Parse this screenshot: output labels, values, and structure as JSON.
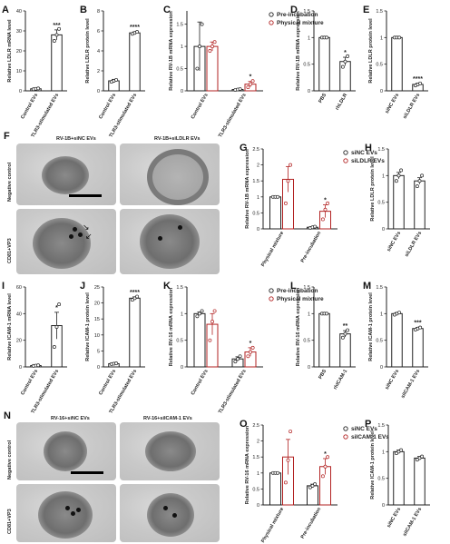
{
  "panel_letters": [
    "A",
    "B",
    "C",
    "D",
    "E",
    "F",
    "G",
    "H",
    "I",
    "J",
    "K",
    "L",
    "M",
    "N",
    "O",
    "P"
  ],
  "colors": {
    "black": "#222222",
    "red": "#b22222"
  },
  "em_F": {
    "col_labels": [
      "RV-1B+siNC EVs",
      "RV-1B+siLDLR EVs"
    ],
    "row_labels": [
      "Negative control",
      "CD81+VP3"
    ]
  },
  "em_N": {
    "col_labels": [
      "RV-16+siNC EVs",
      "RV-16+siICAM-1 EVs"
    ],
    "row_labels": [
      "Negative control",
      "CD81+VP3"
    ]
  },
  "chart_data": [
    {
      "panel": "A",
      "type": "bar",
      "ylabel": "Relative LDLR mRNA level",
      "categories": [
        "Control EVs",
        "TLR3-stimulated EVs"
      ],
      "ylim": [
        0,
        40
      ],
      "yticks": [
        0,
        10,
        20,
        30,
        40
      ],
      "values": [
        1,
        28
      ],
      "errors": [
        0.3,
        2.5
      ],
      "points": [
        [
          0.8,
          1.0,
          1.2
        ],
        [
          25,
          28,
          31
        ]
      ],
      "bar_colors": [
        "black",
        "black"
      ],
      "sig": [
        "",
        "***"
      ]
    },
    {
      "panel": "B",
      "type": "bar",
      "ylabel": "Relative LDLR protein level",
      "categories": [
        "Control EVs",
        "TLR3-stimulated EVs"
      ],
      "ylim": [
        0,
        8
      ],
      "yticks": [
        0,
        2,
        4,
        6,
        8
      ],
      "values": [
        1,
        5.8
      ],
      "errors": [
        0.15,
        0.1
      ],
      "points": [
        [
          0.9,
          1.0,
          1.1
        ],
        [
          5.7,
          5.8,
          5.9
        ]
      ],
      "bar_colors": [
        "black",
        "black"
      ],
      "sig": [
        "",
        "****"
      ]
    },
    {
      "panel": "C",
      "type": "bar",
      "ylabel": "Relative RV-1B mRNA expression",
      "categories": [
        "Control EVs",
        "TLR3-stimulated EVs"
      ],
      "ylim": [
        0,
        1.8
      ],
      "yticks": [
        0,
        0.5,
        1,
        1.5
      ],
      "legend": {
        "position": "top-right",
        "entries": [
          "Pre-incubation",
          "Physical mixture"
        ]
      },
      "series": [
        {
          "name": "Pre-incubation",
          "values": [
            1.0,
            0.03
          ],
          "errors": [
            0.55,
            0.01
          ],
          "points": [
            [
              0.5,
              1.0,
              1.5
            ],
            [
              0.02,
              0.03,
              0.04
            ]
          ],
          "color": "black"
        },
        {
          "name": "Physical mixture",
          "values": [
            1.0,
            0.15
          ],
          "errors": [
            0.1,
            0.06
          ],
          "points": [
            [
              0.9,
              1.0,
              1.1
            ],
            [
              0.08,
              0.15,
              0.22
            ]
          ],
          "color": "red"
        }
      ],
      "sig": [
        "",
        "*"
      ]
    },
    {
      "panel": "D",
      "type": "bar",
      "ylabel": "Relative RV-1B mRNA expression",
      "categories": [
        "PBS",
        "rhLDLR"
      ],
      "ylim": [
        0,
        1.5
      ],
      "yticks": [
        0,
        0.5,
        1,
        1.5
      ],
      "values": [
        1,
        0.55
      ],
      "errors": [
        0.02,
        0.08
      ],
      "points": [
        [
          1,
          1,
          1
        ],
        [
          0.45,
          0.55,
          0.65
        ]
      ],
      "bar_colors": [
        "black",
        "black"
      ],
      "sig": [
        "",
        "*"
      ]
    },
    {
      "panel": "E",
      "type": "bar",
      "ylabel": "Relative LDLR protein level",
      "categories": [
        "siNC EVs",
        "siLDLR EVs"
      ],
      "ylim": [
        0,
        1.5
      ],
      "yticks": [
        0,
        0.5,
        1,
        1.5
      ],
      "values": [
        1,
        0.12
      ],
      "errors": [
        0.02,
        0.02
      ],
      "points": [
        [
          1,
          1,
          1
        ],
        [
          0.1,
          0.12,
          0.14
        ]
      ],
      "bar_colors": [
        "black",
        "black"
      ],
      "sig": [
        "",
        "****"
      ]
    },
    {
      "panel": "G",
      "type": "bar",
      "ylabel": "Relative RV-1B mRNA expression",
      "categories": [
        "Physical mixture",
        "Pre-incubation"
      ],
      "ylim": [
        0,
        2.5
      ],
      "yticks": [
        0,
        0.5,
        1,
        1.5,
        2,
        2.5
      ],
      "legend": {
        "position": "top-right",
        "entries": [
          "siNC EVs",
          "siLDLR EVs"
        ]
      },
      "series": [
        {
          "name": "siNC EVs",
          "values": [
            1.0,
            0.05
          ],
          "errors": [
            0.0,
            0.02
          ],
          "points": [
            [
              1,
              1,
              1
            ],
            [
              0.03,
              0.05,
              0.07
            ]
          ],
          "color": "black"
        },
        {
          "name": "siLDLR EVs",
          "values": [
            1.55,
            0.55
          ],
          "errors": [
            0.4,
            0.2
          ],
          "points": [
            [
              0.8,
              1.5,
              2.0
            ],
            [
              0.3,
              0.6,
              0.8
            ]
          ],
          "color": "red"
        }
      ],
      "sig": [
        "",
        "*"
      ]
    },
    {
      "panel": "H",
      "type": "bar",
      "ylabel": "Relative LDLR protein level",
      "categories": [
        "siNC EVs",
        "siLDLR EVs"
      ],
      "ylim": [
        0,
        1.5
      ],
      "yticks": [
        0,
        0.5,
        1,
        1.5
      ],
      "values": [
        1,
        0.9
      ],
      "errors": [
        0.06,
        0.06
      ],
      "points": [
        [
          0.9,
          1.0,
          1.1
        ],
        [
          0.8,
          0.9,
          1.0
        ]
      ],
      "bar_colors": [
        "black",
        "black"
      ],
      "sig": [
        "",
        ""
      ]
    },
    {
      "panel": "I",
      "type": "bar",
      "ylabel": "Relative ICAM-1 mRNA level",
      "categories": [
        "Control EVs",
        "TLR3-stimulated EVs"
      ],
      "ylim": [
        0,
        60
      ],
      "yticks": [
        0,
        20,
        40,
        60
      ],
      "values": [
        1,
        31
      ],
      "errors": [
        0.3,
        10
      ],
      "points": [
        [
          0.8,
          1.0,
          1.2
        ],
        [
          15,
          30,
          47
        ]
      ],
      "bar_colors": [
        "black",
        "black"
      ],
      "sig": [
        "",
        "*"
      ]
    },
    {
      "panel": "J",
      "type": "bar",
      "ylabel": "Relative ICAM-1 protein level",
      "categories": [
        "Control EVs",
        "TLR3-stimulated EVs"
      ],
      "ylim": [
        0,
        25
      ],
      "yticks": [
        0,
        5,
        10,
        15,
        20,
        25
      ],
      "values": [
        1,
        21.5
      ],
      "errors": [
        0.15,
        0.4
      ],
      "points": [
        [
          0.9,
          1.0,
          1.1
        ],
        [
          21,
          21.5,
          22
        ]
      ],
      "bar_colors": [
        "black",
        "black"
      ],
      "sig": [
        "",
        "****"
      ]
    },
    {
      "panel": "K",
      "type": "bar",
      "ylabel": "Relative RV-16 mRNA expression",
      "categories": [
        "Control EVs",
        "TLR3-stimulated EVs"
      ],
      "ylim": [
        0,
        1.5
      ],
      "yticks": [
        0,
        0.5,
        1,
        1.5
      ],
      "legend": {
        "position": "top-right",
        "entries": [
          "Pre-incubation",
          "Physical mixture"
        ]
      },
      "series": [
        {
          "name": "Pre-incubation",
          "values": [
            1.0,
            0.15
          ],
          "errors": [
            0.03,
            0.04
          ],
          "points": [
            [
              0.95,
              1.0,
              1.05
            ],
            [
              0.1,
              0.15,
              0.2
            ]
          ],
          "color": "black"
        },
        {
          "name": "Physical mixture",
          "values": [
            0.8,
            0.28
          ],
          "errors": [
            0.2,
            0.08
          ],
          "points": [
            [
              0.5,
              0.85,
              1.05
            ],
            [
              0.2,
              0.28,
              0.36
            ]
          ],
          "color": "red"
        }
      ],
      "sig": [
        "",
        "*"
      ]
    },
    {
      "panel": "L",
      "type": "bar",
      "ylabel": "Relative RV-16 mRNA expression",
      "categories": [
        "PBS",
        "rhICAM-1"
      ],
      "ylim": [
        0,
        1.5
      ],
      "yticks": [
        0,
        0.5,
        1,
        1.5
      ],
      "values": [
        1,
        0.62
      ],
      "errors": [
        0.02,
        0.06
      ],
      "points": [
        [
          1,
          1,
          1
        ],
        [
          0.55,
          0.62,
          0.69
        ]
      ],
      "bar_colors": [
        "black",
        "black"
      ],
      "sig": [
        "",
        "**"
      ]
    },
    {
      "panel": "M",
      "type": "bar",
      "ylabel": "Relative ICAM-1 protein level",
      "categories": [
        "siNC EVs",
        "siICAM-1 EVs"
      ],
      "ylim": [
        0,
        1.5
      ],
      "yticks": [
        0,
        0.5,
        1,
        1.5
      ],
      "values": [
        1,
        0.72
      ],
      "errors": [
        0.02,
        0.02
      ],
      "points": [
        [
          0.98,
          1.0,
          1.02
        ],
        [
          0.7,
          0.72,
          0.74
        ]
      ],
      "bar_colors": [
        "black",
        "black"
      ],
      "sig": [
        "",
        "***"
      ]
    },
    {
      "panel": "O",
      "type": "bar",
      "ylabel": "Relative RV-16 mRNA expression",
      "categories": [
        "Physical mixture",
        "Pre-incubation"
      ],
      "ylim": [
        0,
        2.5
      ],
      "yticks": [
        0,
        0.5,
        1,
        1.5,
        2,
        2.5
      ],
      "legend": {
        "position": "top-right",
        "entries": [
          "siNC EVs",
          "siICAM-1 EVs"
        ]
      },
      "series": [
        {
          "name": "siNC EVs",
          "values": [
            1.0,
            0.6
          ],
          "errors": [
            0.0,
            0.05
          ],
          "points": [
            [
              1,
              1,
              1
            ],
            [
              0.55,
              0.6,
              0.65
            ]
          ],
          "color": "black"
        },
        {
          "name": "siICAM-1 EVs",
          "values": [
            1.5,
            1.2
          ],
          "errors": [
            0.55,
            0.25
          ],
          "points": [
            [
              0.7,
              1.4,
              2.3
            ],
            [
              0.9,
              1.2,
              1.5
            ]
          ],
          "color": "red"
        }
      ],
      "sig": [
        "",
        "*"
      ]
    },
    {
      "panel": "P",
      "type": "bar",
      "ylabel": "Relative ICAM-1 protein level",
      "categories": [
        "siNC EVs",
        "siICAM-1 EVs"
      ],
      "ylim": [
        0,
        1.5
      ],
      "yticks": [
        0,
        0.5,
        1,
        1.5
      ],
      "values": [
        1,
        0.88
      ],
      "errors": [
        0.03,
        0.03
      ],
      "points": [
        [
          0.97,
          1.0,
          1.03
        ],
        [
          0.85,
          0.88,
          0.91
        ]
      ],
      "bar_colors": [
        "black",
        "black"
      ],
      "sig": [
        "",
        ""
      ]
    }
  ]
}
